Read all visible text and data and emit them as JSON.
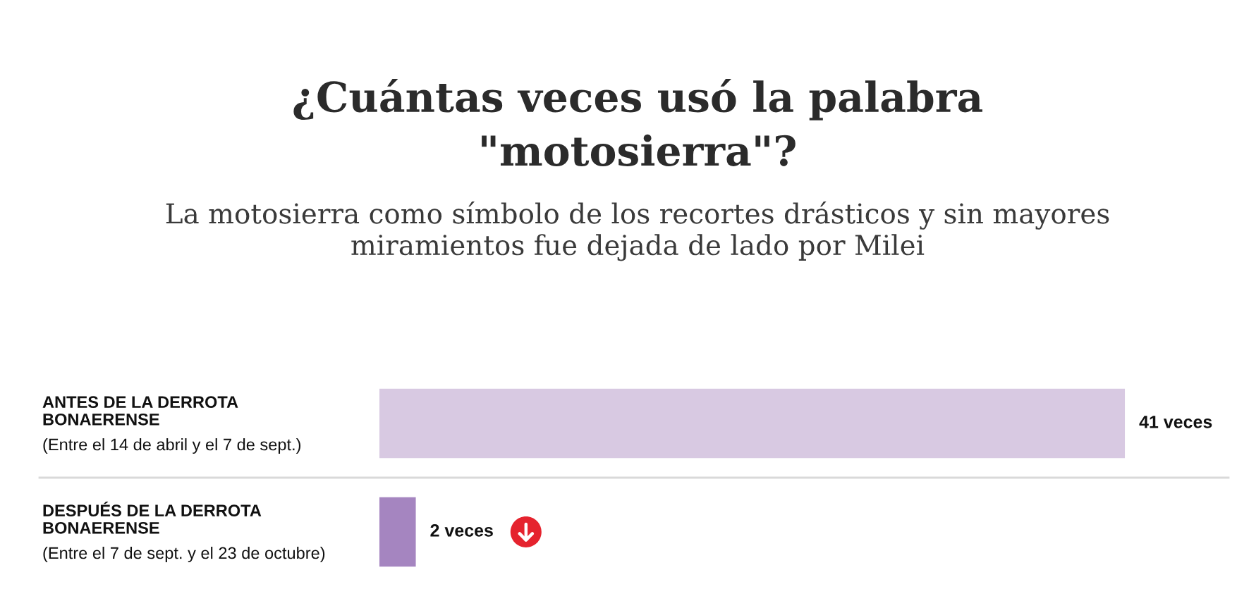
{
  "chart_data": {
    "type": "bar",
    "orientation": "horizontal",
    "title": "¿Cuántas veces usó la palabra\n\"motosierra\"?",
    "subtitle": "La motosierra como símbolo de los recortes drásticos y sin mayores\nmiramientos fue dejada de lado por Milei",
    "categories": [
      "ANTES DE LA DERROTA\nBONAERENSE\n(Entre el 14 de abril y el 7 de sept.)",
      "DESPUÉS DE LA DERROTA\nBONAERENSE\n(Entre el 7 de sept. y el 23 de octubre)"
    ],
    "values": [
      41,
      2
    ],
    "colors": [
      "#d8c9e2",
      "#a585c0"
    ],
    "value_labels": [
      "41 veces",
      "2 veces"
    ],
    "xlim": [
      0,
      46.7
    ],
    "tick_labels": "y",
    "grid": "y"
  }
}
